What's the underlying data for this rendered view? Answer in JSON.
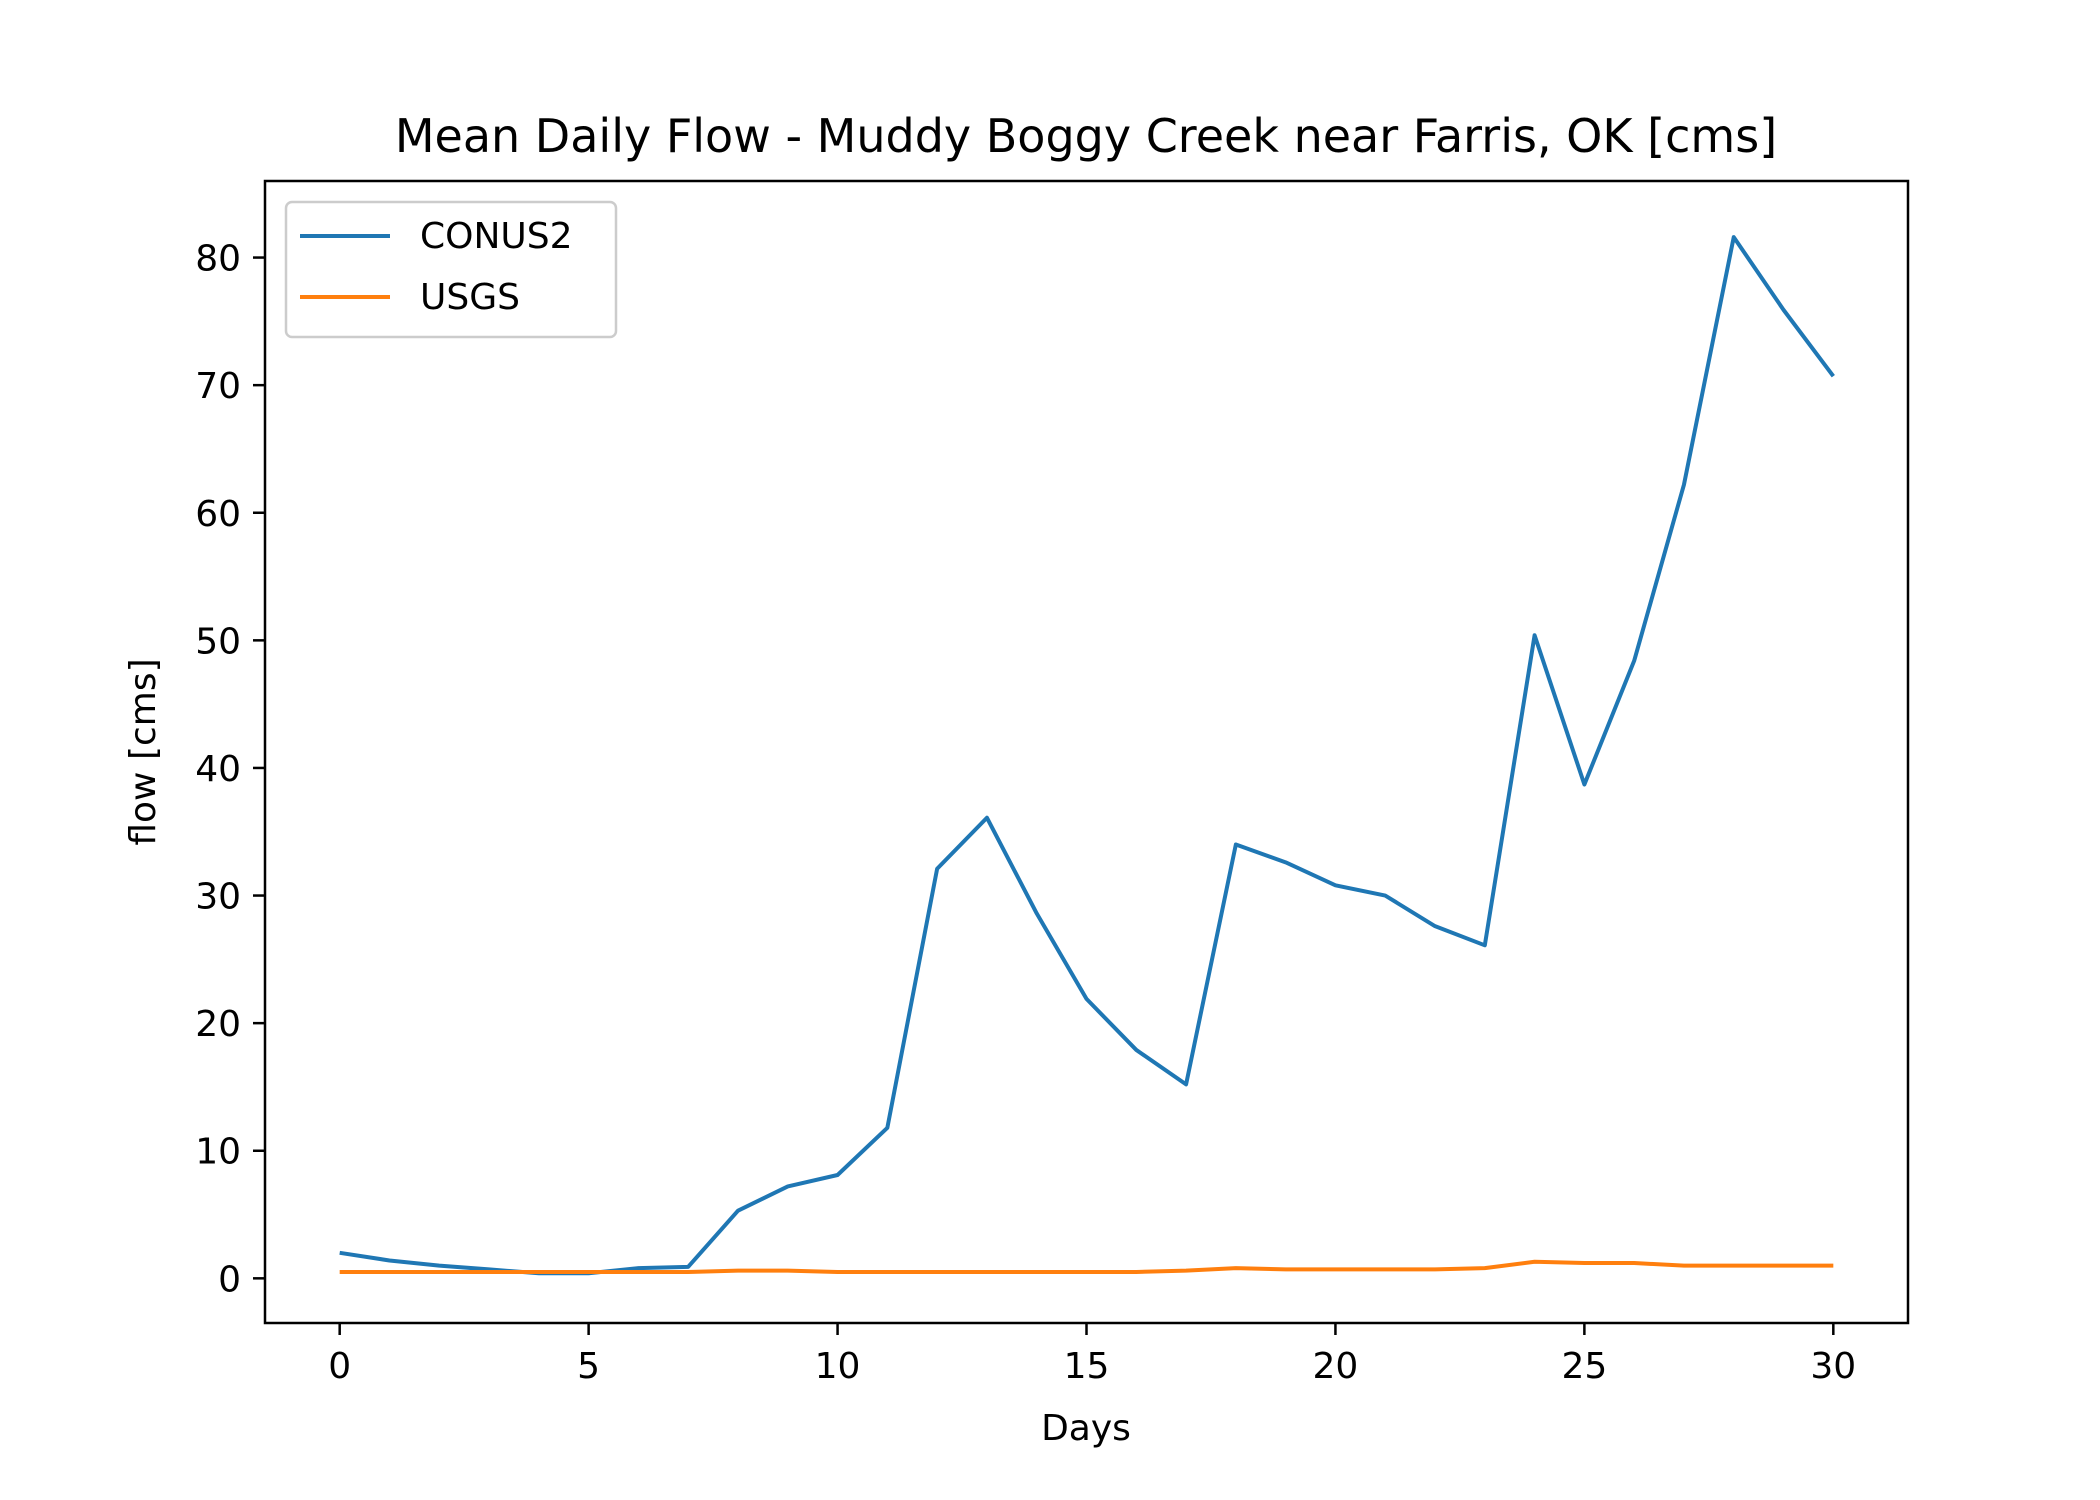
{
  "chart_data": {
    "type": "line",
    "title": "Mean Daily Flow - Muddy Boggy Creek near Farris, OK [cms]",
    "xlabel": "Days",
    "ylabel": "flow [cms]",
    "xlim": [
      -1.5,
      31.5
    ],
    "ylim": [
      -3.5,
      86
    ],
    "xticks": [
      0,
      5,
      10,
      15,
      20,
      25,
      30
    ],
    "yticks": [
      0,
      10,
      20,
      30,
      40,
      50,
      60,
      70,
      80
    ],
    "grid": false,
    "legend": "top-left",
    "x": [
      0,
      1,
      2,
      3,
      4,
      5,
      6,
      7,
      8,
      9,
      10,
      11,
      12,
      13,
      14,
      15,
      16,
      17,
      18,
      19,
      20,
      21,
      22,
      23,
      24,
      25,
      26,
      27,
      28,
      29,
      30
    ],
    "series": [
      {
        "name": "CONUS2",
        "color": "#1f77b4",
        "values": [
          2.0,
          1.4,
          1.0,
          0.7,
          0.4,
          0.4,
          0.8,
          0.9,
          5.3,
          7.2,
          8.1,
          11.8,
          32.1,
          36.1,
          28.6,
          21.9,
          17.9,
          15.2,
          34.0,
          32.6,
          30.8,
          30.0,
          27.6,
          26.1,
          50.4,
          38.7,
          48.4,
          62.2,
          81.6,
          75.9,
          70.7
        ]
      },
      {
        "name": "USGS",
        "color": "#ff7f0e",
        "values": [
          0.5,
          0.5,
          0.5,
          0.5,
          0.5,
          0.5,
          0.5,
          0.5,
          0.6,
          0.6,
          0.5,
          0.5,
          0.5,
          0.5,
          0.5,
          0.5,
          0.5,
          0.6,
          0.8,
          0.7,
          0.7,
          0.7,
          0.7,
          0.8,
          1.3,
          1.2,
          1.2,
          1.0,
          1.0,
          1.0,
          1.0
        ]
      }
    ]
  }
}
